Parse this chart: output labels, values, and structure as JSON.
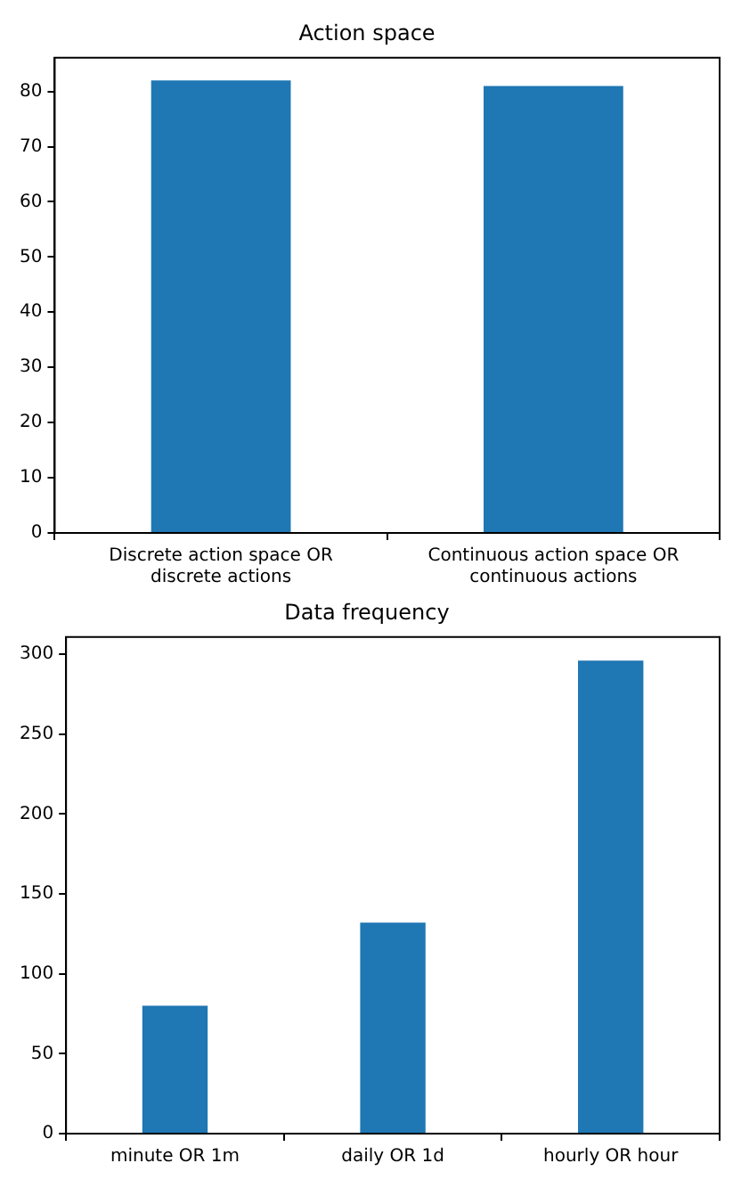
{
  "chart_data": [
    {
      "type": "bar",
      "title": "Action space",
      "categories": [
        "Discrete action space OR\ndiscrete actions",
        "Continuous action space OR\ncontinuous actions"
      ],
      "values": [
        82,
        81
      ],
      "color": "#1f77b4",
      "ylim": [
        0,
        86.1
      ],
      "yticks": [
        0,
        10,
        20,
        30,
        40,
        50,
        60,
        70,
        80
      ],
      "grid": false,
      "legend": false
    },
    {
      "type": "bar",
      "title": "Data frequency",
      "categories": [
        "minute OR 1m",
        "daily OR 1d",
        "hourly OR hour"
      ],
      "values": [
        80,
        132,
        296
      ],
      "color": "#1f77b4",
      "ylim": [
        0,
        310.8
      ],
      "yticks": [
        0,
        50,
        100,
        150,
        200,
        250,
        300
      ],
      "grid": false,
      "legend": false
    }
  ]
}
